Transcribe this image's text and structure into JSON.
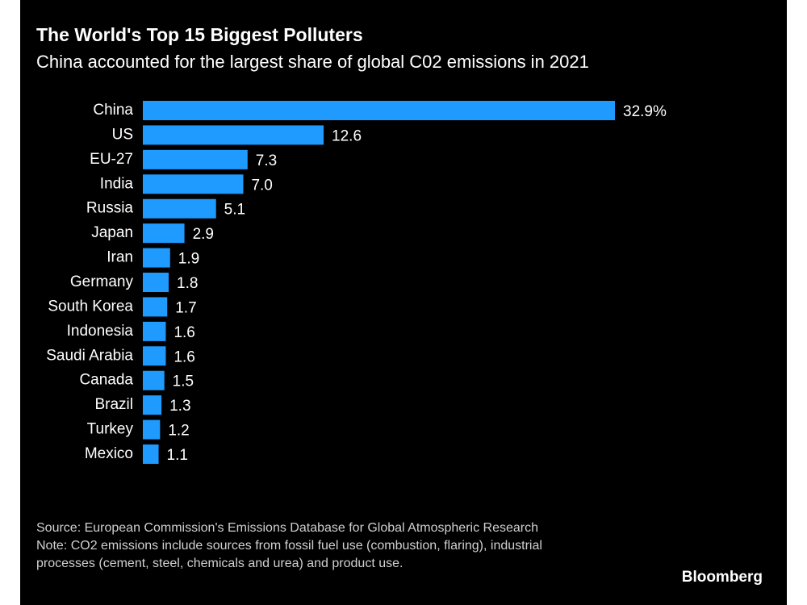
{
  "chart_data": {
    "type": "hbar",
    "title": "The World's Top 15 Biggest Polluters",
    "subtitle": "China accounted for the largest share of global C02 emissions in 2021",
    "categories": [
      "China",
      "US",
      "EU-27",
      "India",
      "Russia",
      "Japan",
      "Iran",
      "Germany",
      "South Korea",
      "Indonesia",
      "Saudi Arabia",
      "Canada",
      "Brazil",
      "Turkey",
      "Mexico"
    ],
    "values": [
      32.9,
      12.6,
      7.3,
      7.0,
      5.1,
      2.9,
      1.9,
      1.8,
      1.7,
      1.6,
      1.6,
      1.5,
      1.3,
      1.2,
      1.1
    ],
    "value_labels": [
      "32.9%",
      "12.6",
      "7.3",
      "7.0",
      "5.1",
      "2.9",
      "1.9",
      "1.8",
      "1.7",
      "1.6",
      "1.6",
      "1.5",
      "1.3",
      "1.2",
      "1.1"
    ],
    "color": "#1f9bff",
    "source": "Source: European Commission's Emissions Database for Global Atmospheric Research",
    "note": "Note: CO2 emissions include sources from fossil fuel use (combustion, flaring), industrial processes (cement, steel, chemicals and urea) and product use.",
    "logo": "Bloomberg"
  }
}
